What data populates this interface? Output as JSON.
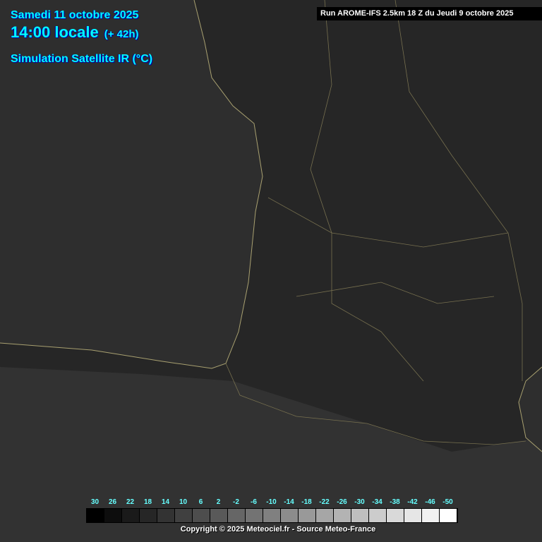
{
  "header": {
    "date": "Samedi 11 octobre 2025",
    "time": "14:00 locale",
    "lead": "(+ 42h)",
    "product": "Simulation Satellite IR (°C)"
  },
  "run_info": "Run AROME-IFS 2.5km 18 Z du Jeudi 9 octobre 2025",
  "legend": {
    "labels": [
      "30",
      "26",
      "22",
      "18",
      "14",
      "10",
      "6",
      "2",
      "-2",
      "-6",
      "-10",
      "-14",
      "-18",
      "-22",
      "-26",
      "-30",
      "-34",
      "-38",
      "-42",
      "-46",
      "-50"
    ],
    "colors": [
      "#000000",
      "#0d0d0d",
      "#1a1a1a",
      "#262626",
      "#333333",
      "#404040",
      "#4d4d4d",
      "#595959",
      "#666666",
      "#737373",
      "#808080",
      "#8c8c8c",
      "#999999",
      "#a6a6a6",
      "#b3b3b3",
      "#bfbfbf",
      "#cccccc",
      "#d9d9d9",
      "#e6e6e6",
      "#f2f2f2",
      "#ffffff"
    ]
  },
  "copyright": "Copyright © 2025 Meteociel.fr - Source Meteo-France",
  "colors": {
    "title": "#00ffff",
    "coast": "#a8a070",
    "sea": "#2e2e2e",
    "land": "#262626"
  }
}
